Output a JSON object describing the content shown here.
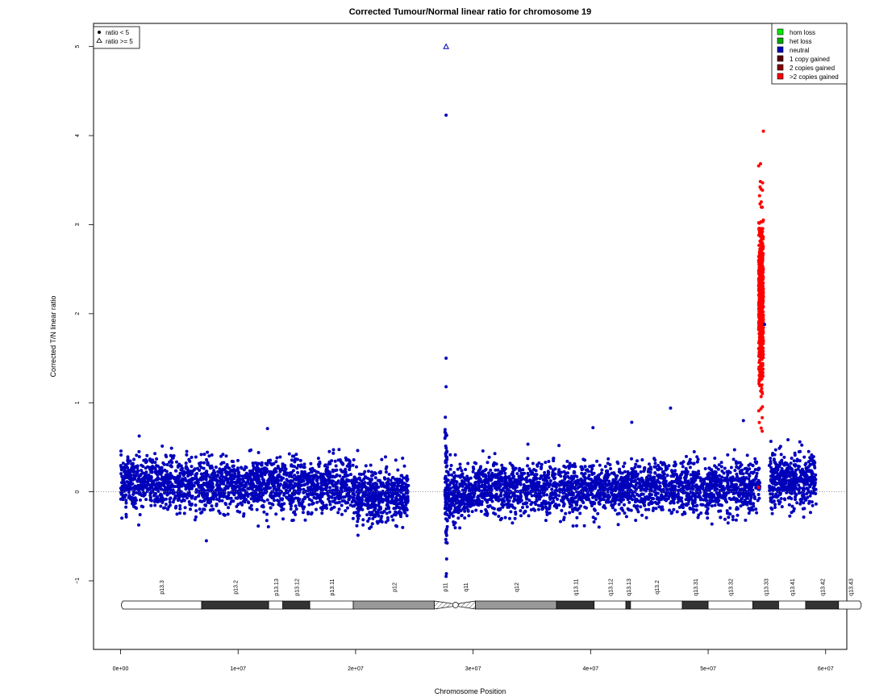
{
  "chart_data": {
    "type": "scatter",
    "title": "Corrected Tumour/Normal linear ratio for chromosome  19",
    "xlabel": "Chromosome Position",
    "ylabel": "Corrected T/N linear ratio",
    "xlim": [
      -2300000,
      61800000
    ],
    "ylim": [
      -1.77,
      5.26
    ],
    "x_ticks": [
      {
        "value": 0,
        "label": "0e+00"
      },
      {
        "value": 10000000,
        "label": "1e+07"
      },
      {
        "value": 20000000,
        "label": "2e+07"
      },
      {
        "value": 30000000,
        "label": "3e+07"
      },
      {
        "value": 40000000,
        "label": "4e+07"
      },
      {
        "value": 50000000,
        "label": "5e+07"
      },
      {
        "value": 60000000,
        "label": "6e+07"
      }
    ],
    "y_ticks": [
      {
        "value": -1,
        "label": "−1"
      },
      {
        "value": 0,
        "label": "0"
      },
      {
        "value": 1,
        "label": "1"
      },
      {
        "value": 2,
        "label": "2"
      },
      {
        "value": 3,
        "label": "3"
      },
      {
        "value": 4,
        "label": "4"
      },
      {
        "value": 5,
        "label": "5"
      }
    ],
    "reference_line": {
      "y": 0,
      "style": "dotted"
    },
    "shape_legend": {
      "position": "top-left",
      "entries": [
        {
          "symbol": "filled-circle",
          "label": "ratio < 5"
        },
        {
          "symbol": "open-triangle",
          "label": "ratio >= 5"
        }
      ]
    },
    "color_legend": {
      "position": "top-right",
      "entries": [
        {
          "label": "hom loss",
          "color": "#00ee00"
        },
        {
          "label": "het loss",
          "color": "#00aa00"
        },
        {
          "label": "neutral",
          "color": "#0000bb"
        },
        {
          "label": "1 copy gained",
          "color": "#5c0000"
        },
        {
          "label": "2 copies gained",
          "color": "#8b0000"
        },
        {
          "label": ">2 copies gained",
          "color": "#ff0000"
        }
      ]
    },
    "point_colors": {
      "neutral": "#0000bb",
      "gained": "#ff0000"
    },
    "segments": [
      {
        "state": "neutral",
        "start": 0,
        "end": 6000000,
        "center": 0.1,
        "spread": 0.15,
        "n": 650
      },
      {
        "state": "neutral",
        "start": 6000000,
        "end": 20000000,
        "center": 0.07,
        "spread": 0.15,
        "n": 1400
      },
      {
        "state": "neutral",
        "start": 20000000,
        "end": 24500000,
        "center": -0.05,
        "spread": 0.14,
        "n": 500
      },
      {
        "state": "neutral",
        "start": 27600000,
        "end": 27800000,
        "center": 0.0,
        "spread": 0.4,
        "n": 80
      },
      {
        "state": "neutral",
        "start": 27800000,
        "end": 30000000,
        "center": -0.04,
        "spread": 0.14,
        "n": 280
      },
      {
        "state": "neutral",
        "start": 30000000,
        "end": 54400000,
        "center": 0.04,
        "spread": 0.14,
        "n": 2400
      },
      {
        "state": "gained",
        "start": 54300000,
        "end": 54700000,
        "center": 2.1,
        "spread": 0.45,
        "n": 700
      },
      {
        "state": "neutral",
        "start": 55200000,
        "end": 59200000,
        "center": 0.12,
        "spread": 0.15,
        "n": 450
      }
    ],
    "points": [
      {
        "x": 27700000,
        "y": 5.0,
        "state": "neutral",
        "symbol": "triangle"
      },
      {
        "x": 27700000,
        "y": 4.23,
        "state": "neutral"
      },
      {
        "x": 27700000,
        "y": 1.5,
        "state": "neutral"
      },
      {
        "x": 27700000,
        "y": 1.18,
        "state": "neutral"
      },
      {
        "x": 27700000,
        "y": -0.95,
        "state": "neutral"
      },
      {
        "x": 54700000,
        "y": 4.05,
        "state": "gained"
      },
      {
        "x": 54300000,
        "y": 3.66,
        "state": "gained"
      },
      {
        "x": 54500000,
        "y": 3.4,
        "state": "gained"
      },
      {
        "x": 54600000,
        "y": 0.68,
        "state": "gained"
      },
      {
        "x": 54300000,
        "y": 0.05,
        "state": "gained"
      },
      {
        "x": 54800000,
        "y": 1.88,
        "state": "neutral"
      },
      {
        "x": 46800000,
        "y": 0.94,
        "state": "neutral"
      },
      {
        "x": 40200000,
        "y": 0.72,
        "state": "neutral"
      },
      {
        "x": 43500000,
        "y": 0.78,
        "state": "neutral"
      },
      {
        "x": 53000000,
        "y": 0.8,
        "state": "neutral"
      },
      {
        "x": 12500000,
        "y": 0.71,
        "state": "neutral"
      },
      {
        "x": 7300000,
        "y": -0.55,
        "state": "neutral"
      }
    ],
    "ideogram": {
      "bands": [
        {
          "name": "p13.3",
          "start": 0,
          "end": 6900000,
          "stain": "gneg"
        },
        {
          "name": "p13.2",
          "start": 6900000,
          "end": 12600000,
          "stain": "gpos75"
        },
        {
          "name": "p13.13",
          "start": 12600000,
          "end": 13800000,
          "stain": "gneg"
        },
        {
          "name": "p13.12",
          "start": 13800000,
          "end": 16100000,
          "stain": "gpos75"
        },
        {
          "name": "p13.11",
          "start": 16100000,
          "end": 19800000,
          "stain": "gneg"
        },
        {
          "name": "p12",
          "start": 19800000,
          "end": 26700000,
          "stain": "gvar"
        },
        {
          "name": "p11",
          "start": 26700000,
          "end": 28500000,
          "stain": "acen"
        },
        {
          "name": "q11",
          "start": 28500000,
          "end": 30200000,
          "stain": "acen"
        },
        {
          "name": "q12",
          "start": 30200000,
          "end": 37100000,
          "stain": "gvar"
        },
        {
          "name": "q13.11",
          "start": 37100000,
          "end": 40300000,
          "stain": "gpos75"
        },
        {
          "name": "q13.12",
          "start": 40300000,
          "end": 43000000,
          "stain": "gneg"
        },
        {
          "name": "q13.13",
          "start": 43000000,
          "end": 43400000,
          "stain": "gpos75"
        },
        {
          "name": "q13.2",
          "start": 43400000,
          "end": 47800000,
          "stain": "gneg"
        },
        {
          "name": "q13.31",
          "start": 47800000,
          "end": 50000000,
          "stain": "gpos75"
        },
        {
          "name": "q13.32",
          "start": 50000000,
          "end": 53800000,
          "stain": "gneg"
        },
        {
          "name": "q13.33",
          "start": 53800000,
          "end": 56000000,
          "stain": "gpos75"
        },
        {
          "name": "q13.41",
          "start": 56000000,
          "end": 58300000,
          "stain": "gneg"
        },
        {
          "name": "q13.42",
          "start": 58300000,
          "end": 61100000,
          "stain": "gpos75"
        },
        {
          "name": "q13.43",
          "start": 61100000,
          "end": 63100000,
          "stain": "gneg"
        }
      ]
    }
  }
}
